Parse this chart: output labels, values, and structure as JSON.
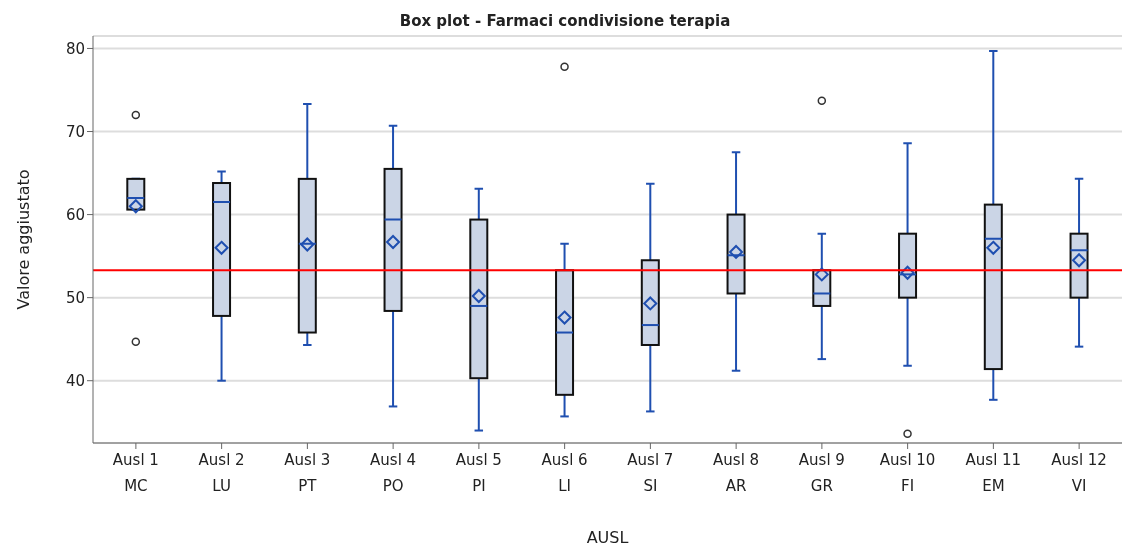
{
  "chart_data": {
    "type": "box",
    "title": "Box plot - Farmaci condivisione terapia",
    "xlabel": "AUSL",
    "ylabel": "Valore aggiustato",
    "categories": [
      "Ausl 1\nMC",
      "Ausl 2\nLU",
      "Ausl 3\nPT",
      "Ausl 4\nPO",
      "Ausl 5\nPI",
      "Ausl 6\nLI",
      "Ausl 7\nSI",
      "Ausl 8\nAR",
      "Ausl 9\nGR",
      "Ausl 10\nFI",
      "Ausl 11\nEM",
      "Ausl 12\nVI"
    ],
    "color": "#cbd5e6",
    "boxes": [
      {
        "low": 60.6,
        "q1": 60.6,
        "median": 62,
        "q3": 64.3,
        "high": 64.3,
        "mean": 61,
        "outliers": [
          72,
          44.7
        ]
      },
      {
        "low": 40,
        "q1": 47.8,
        "median": 61.5,
        "q3": 63.8,
        "high": 65.2,
        "mean": 56
      },
      {
        "low": 44.3,
        "q1": 45.8,
        "median": 56.5,
        "q3": 64.3,
        "high": 73.3,
        "mean": 56.4
      },
      {
        "low": 36.9,
        "q1": 48.4,
        "median": 59.4,
        "q3": 65.5,
        "high": 70.7,
        "mean": 56.7
      },
      {
        "low": 34,
        "q1": 40.3,
        "median": 49,
        "q3": 59.4,
        "high": 63.1,
        "mean": 50.2
      },
      {
        "low": 35.7,
        "q1": 38.3,
        "median": 45.8,
        "q3": 53.3,
        "high": 56.5,
        "mean": 47.6,
        "outliers": [
          77.8
        ]
      },
      {
        "low": 36.3,
        "q1": 44.3,
        "median": 46.7,
        "q3": 54.5,
        "high": 63.7,
        "mean": 49.3
      },
      {
        "low": 41.2,
        "q1": 50.5,
        "median": 55.1,
        "q3": 60,
        "high": 67.5,
        "mean": 55.5
      },
      {
        "low": 42.6,
        "q1": 49,
        "median": 50.5,
        "q3": 53.3,
        "high": 57.7,
        "mean": 52.8,
        "outliers": [
          73.7
        ]
      },
      {
        "low": 41.8,
        "q1": 50,
        "median": 52.8,
        "q3": 57.7,
        "high": 68.6,
        "mean": 53,
        "outliers": [
          33.6
        ]
      },
      {
        "low": 37.7,
        "q1": 41.4,
        "median": 57.1,
        "q3": 61.2,
        "high": 79.7,
        "mean": 56
      },
      {
        "low": 44.1,
        "q1": 50,
        "median": 55.7,
        "q3": 57.7,
        "high": 64.3,
        "mean": 54.5
      }
    ],
    "ylim": [
      32.5,
      81.5
    ],
    "yticks": [
      40,
      50,
      60,
      70,
      80
    ],
    "grid": "y",
    "ref_lines": [
      {
        "axis": "y",
        "value": 53.3,
        "color": "#ff0000"
      }
    ]
  }
}
